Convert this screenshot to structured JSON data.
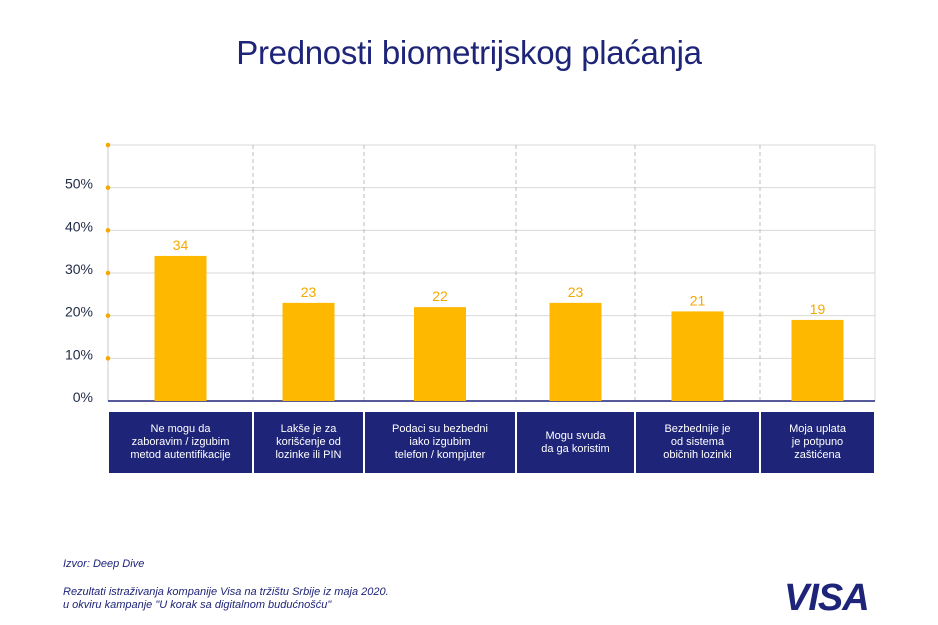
{
  "chart_data": {
    "type": "bar",
    "title": "Prednosti biometrijskog plaćanja",
    "categories": [
      "Ne mogu da\nzaboravim / izgubim\nmetod autentifikacije",
      "Lakše je za\nkorišćenje od\nlozinke ili PIN",
      "Podaci su bezbedni\niako izgubim\ntelefon / kompjuter",
      "Mogu svuda\nda ga koristim",
      "Bezbednije je\nod sistema\nobičnih lozinki",
      "Moja uplata\nje potpuno\nzaštićena"
    ],
    "values": [
      34,
      23,
      22,
      23,
      21,
      19
    ],
    "value_labels": [
      "34",
      "23",
      "22",
      "23",
      "21",
      "19"
    ],
    "y_ticks": [
      "0%",
      "10%",
      "20%",
      "30%",
      "40%",
      "50%"
    ],
    "ylim": [
      0,
      60
    ],
    "grid": true,
    "colors": {
      "bar": "#ffb800",
      "label": "#f4a900",
      "category_box": "#1e2478",
      "axis_dots": "#f4a900"
    }
  },
  "footer": {
    "source": "Izvor: Deep Dive",
    "note": "Rezultati istraživanja kompanije Visa na tržištu Srbije iz maja 2020.\nu okviru kampanje \"U korak sa digitalnom budućnošću\""
  },
  "logo": {
    "text": "VISA"
  }
}
